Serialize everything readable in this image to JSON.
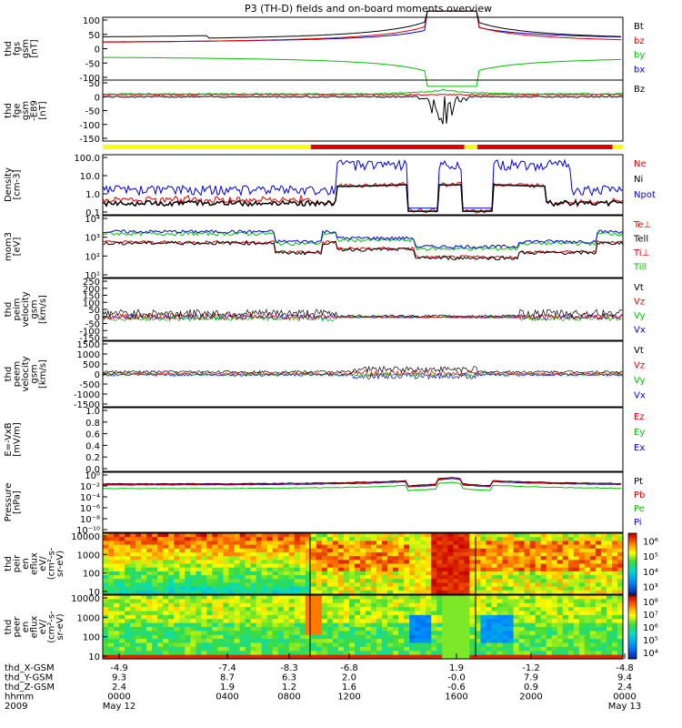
{
  "chart_data": {
    "type": "line",
    "title": "P3 (TH-D) fields and on-board moments overview",
    "colors": {
      "black": "#000000",
      "red": "#e00000",
      "green": "#00c000",
      "blue": "#0000e0",
      "yellow": "#ffff00"
    },
    "panels": [
      {
        "ylabel": [
          "thd",
          "fgs",
          "gsm",
          "[nT]"
        ],
        "yticks": [
          "100",
          "50",
          "0",
          "-50",
          "-100"
        ],
        "legend": [
          {
            "name": "Bt",
            "color": "black"
          },
          {
            "name": "bz",
            "color": "red"
          },
          {
            "name": "by",
            "color": "green"
          },
          {
            "name": "bx",
            "color": "blue"
          }
        ]
      },
      {
        "ylabel": [
          "thd",
          "fge",
          "gsm",
          "-E89",
          "[nT]"
        ],
        "yticks": [
          "50",
          "0",
          "-50",
          "-100",
          "-150"
        ],
        "legend": [
          {
            "name": "Bz",
            "color": "black"
          }
        ]
      },
      {
        "ylabel": [],
        "yticks": [],
        "legend": []
      },
      {
        "ylabel": [
          "Density",
          "[cm-3]"
        ],
        "yticks": [
          "100.0",
          "10.0",
          "1.0",
          "0.1"
        ],
        "legend": [
          {
            "name": "Ne",
            "color": "red"
          },
          {
            "name": "Ni",
            "color": "black"
          },
          {
            "name": "Npot",
            "color": "blue"
          }
        ]
      },
      {
        "ylabel": [
          "mom3",
          "[eV]"
        ],
        "yticks": [
          "10⁴",
          "10³",
          "10²",
          "10¹"
        ],
        "legend": [
          {
            "name": "Te⊥",
            "color": "red"
          },
          {
            "name": "Tell",
            "color": "black"
          },
          {
            "name": "Ti⊥",
            "color": "red"
          },
          {
            "name": "Till",
            "color": "green"
          }
        ]
      },
      {
        "ylabel": [
          "thd",
          "peim",
          "velocity",
          "gsm",
          "[km/s]"
        ],
        "yticks": [
          "250",
          "200",
          "150",
          "100",
          "50",
          "0",
          "-50",
          "-100",
          "-150"
        ],
        "legend": [
          {
            "name": "Vt",
            "color": "black"
          },
          {
            "name": "Vz",
            "color": "red"
          },
          {
            "name": "Vy",
            "color": "green"
          },
          {
            "name": "Vx",
            "color": "blue"
          }
        ]
      },
      {
        "ylabel": [
          "thd",
          "peem",
          "velocity",
          "gsm",
          "[km/s]"
        ],
        "yticks": [
          "1500",
          "1000",
          "500",
          "0",
          "-500",
          "-1000",
          "-1500"
        ],
        "legend": [
          {
            "name": "Vt",
            "color": "black"
          },
          {
            "name": "Vz",
            "color": "red"
          },
          {
            "name": "Vy",
            "color": "green"
          },
          {
            "name": "Vx",
            "color": "blue"
          }
        ]
      },
      {
        "ylabel": [
          "E=-VxB",
          "[mV/m]"
        ],
        "yticks": [
          "1.0",
          "0.8",
          "0.6",
          "0.4",
          "0.2",
          "0.0"
        ],
        "legend": [
          {
            "name": "Ez",
            "color": "red"
          },
          {
            "name": "Ey",
            "color": "green"
          },
          {
            "name": "Ex",
            "color": "blue"
          }
        ]
      },
      {
        "ylabel": [
          "Pressure",
          "[nPa]"
        ],
        "yticks": [
          "10⁰",
          "10⁻²",
          "10⁻⁴",
          "10⁻⁶",
          "10⁻⁸",
          "10⁻¹⁰"
        ],
        "legend": [
          {
            "name": "Pt",
            "color": "black"
          },
          {
            "name": "Pb",
            "color": "red"
          },
          {
            "name": "Pe",
            "color": "green"
          },
          {
            "name": "Pi",
            "color": "blue"
          }
        ]
      },
      {
        "ylabel": [
          "thd",
          "peir",
          "en",
          "eflux",
          "eV/",
          "(cm²-s-",
          "sr-eV)"
        ],
        "yticks": [
          "10000",
          "1000",
          "100",
          "10"
        ],
        "cbar": [
          "10⁶",
          "10⁵",
          "10⁴",
          "10³"
        ]
      },
      {
        "ylabel": [
          "thd",
          "peer",
          "en",
          "eflux",
          "eV/",
          "(cm²-s-",
          "sr-eV)"
        ],
        "yticks": [
          "10000",
          "1000",
          "100",
          "10"
        ],
        "cbar": [
          "10⁸",
          "10⁷",
          "10⁶",
          "10⁵",
          "10⁴"
        ]
      }
    ],
    "footer": {
      "rows": [
        {
          "label": "thd_X-GSM",
          "values": [
            "-4.9",
            "-7.4",
            "-8.3",
            "-6.8",
            "1.9",
            "-1.2",
            "-4.8"
          ]
        },
        {
          "label": "thd_Y-GSM",
          "values": [
            "9.3",
            "8.7",
            "6.3",
            "2.0",
            "-0.0",
            "7.9",
            "9.4"
          ]
        },
        {
          "label": "thd_Z-GSM",
          "values": [
            "2.4",
            "1.9",
            "1.2",
            "1.6",
            "-0.6",
            "0.9",
            "2.4"
          ]
        },
        {
          "label": "hhmm",
          "values": [
            "0000",
            "0400",
            "0800",
            "1200",
            "1600",
            "2000",
            "0000"
          ]
        },
        {
          "label": "2009",
          "values": [
            "May 12",
            "",
            "",
            "",
            "",
            "",
            "May 13"
          ]
        }
      ]
    }
  }
}
